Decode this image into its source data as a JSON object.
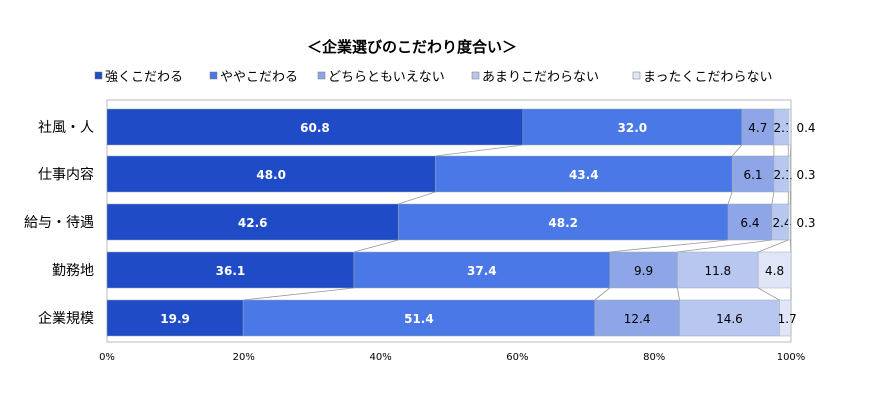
{
  "chart_data": {
    "type": "bar",
    "orientation": "horizontal",
    "stacked": true,
    "title": "＜企業選びのこだわり度合い＞",
    "categories": [
      "社風・人",
      "仕事内容",
      "給与・待遇",
      "勤務地",
      "企業規模"
    ],
    "series": [
      {
        "name": "強くこだわる",
        "color": "#1f4bc6",
        "values": [
          60.8,
          48.0,
          42.6,
          36.1,
          19.9
        ]
      },
      {
        "name": "ややこだわる",
        "color": "#4a78e6",
        "values": [
          32.0,
          43.4,
          48.2,
          37.4,
          51.4
        ]
      },
      {
        "name": "どちらともいえない",
        "color": "#8ea6e8",
        "values": [
          4.7,
          6.1,
          6.4,
          9.9,
          12.4
        ]
      },
      {
        "name": "あまりこだわらない",
        "color": "#b8c7ef",
        "values": [
          2.1,
          2.1,
          2.4,
          11.8,
          14.6
        ]
      },
      {
        "name": "まったくこだわらない",
        "color": "#e0e6f7",
        "values": [
          0.4,
          0.3,
          0.3,
          4.8,
          1.7
        ]
      }
    ],
    "xlim": [
      0,
      100
    ],
    "xticks": [
      "0%",
      "20%",
      "40%",
      "60%",
      "80%",
      "100%"
    ],
    "legend": "top",
    "grid": false
  }
}
